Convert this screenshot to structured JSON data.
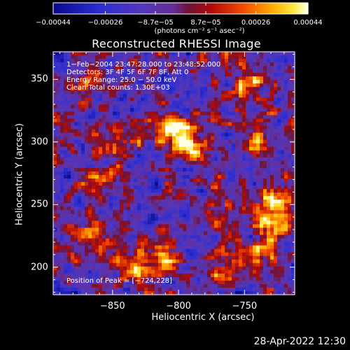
{
  "chart_data": {
    "type": "heatmap",
    "title": "Reconstructed RHESSI Image",
    "xlabel": "Heliocentric X (arcsec)",
    "ylabel": "Heliocentric Y (arcsec)",
    "xlim": [
      -895,
      -712
    ],
    "ylim": [
      178,
      372
    ],
    "x_ticks": [
      -850,
      -800,
      -750
    ],
    "y_ticks": [
      200,
      250,
      300,
      350
    ],
    "x_tick_labels": [
      "−850",
      "−800",
      "−750"
    ],
    "y_tick_labels": [
      "200",
      "250",
      "300",
      "350"
    ],
    "colorbar": {
      "min": -0.00044,
      "max": 0.00044,
      "ticks": [
        -0.00044,
        -0.00026,
        -8.7e-05,
        8.7e-05,
        0.00026,
        0.00044
      ],
      "tick_labels": [
        "−0.00044",
        "−0.00026",
        "−8.7e−05",
        "8.7e−05",
        "0.00026",
        "0.00044"
      ],
      "units": "(photons cm⁻² s⁻¹ asec⁻²)"
    },
    "annotations": [
      "1−Feb−2004 23:47:28.000 to 23:48:52.000",
      "Detectors: 3F 4F 5F 6F 7F 8F, Att 0",
      "Energy Range: 25.0 − 50.0 keV",
      "Clean     Total counts: 1.30E+03"
    ],
    "peak_label": "Position of Peak = [−724,228]",
    "peak_position": [
      -724,
      228
    ],
    "sources": [
      {
        "x": -800,
        "y": 310,
        "amp": 1.0
      },
      {
        "x": -790,
        "y": 297,
        "amp": 0.8
      },
      {
        "x": -745,
        "y": 347,
        "amp": 0.7
      },
      {
        "x": -738,
        "y": 300,
        "amp": 0.65
      },
      {
        "x": -728,
        "y": 255,
        "amp": 0.75
      },
      {
        "x": -724,
        "y": 238,
        "amp": 0.85
      },
      {
        "x": -740,
        "y": 210,
        "amp": 0.7
      },
      {
        "x": -765,
        "y": 195,
        "amp": 0.65
      },
      {
        "x": -810,
        "y": 210,
        "amp": 0.7
      },
      {
        "x": -830,
        "y": 200,
        "amp": 0.55
      },
      {
        "x": -870,
        "y": 225,
        "amp": 0.5
      },
      {
        "x": -860,
        "y": 270,
        "amp": 0.55
      },
      {
        "x": -875,
        "y": 350,
        "amp": 0.45
      },
      {
        "x": -845,
        "y": 295,
        "amp": 0.45
      },
      {
        "x": -760,
        "y": 250,
        "amp": 0.4
      }
    ]
  },
  "footer": {
    "date": "28-Apr-2022 12:30"
  }
}
